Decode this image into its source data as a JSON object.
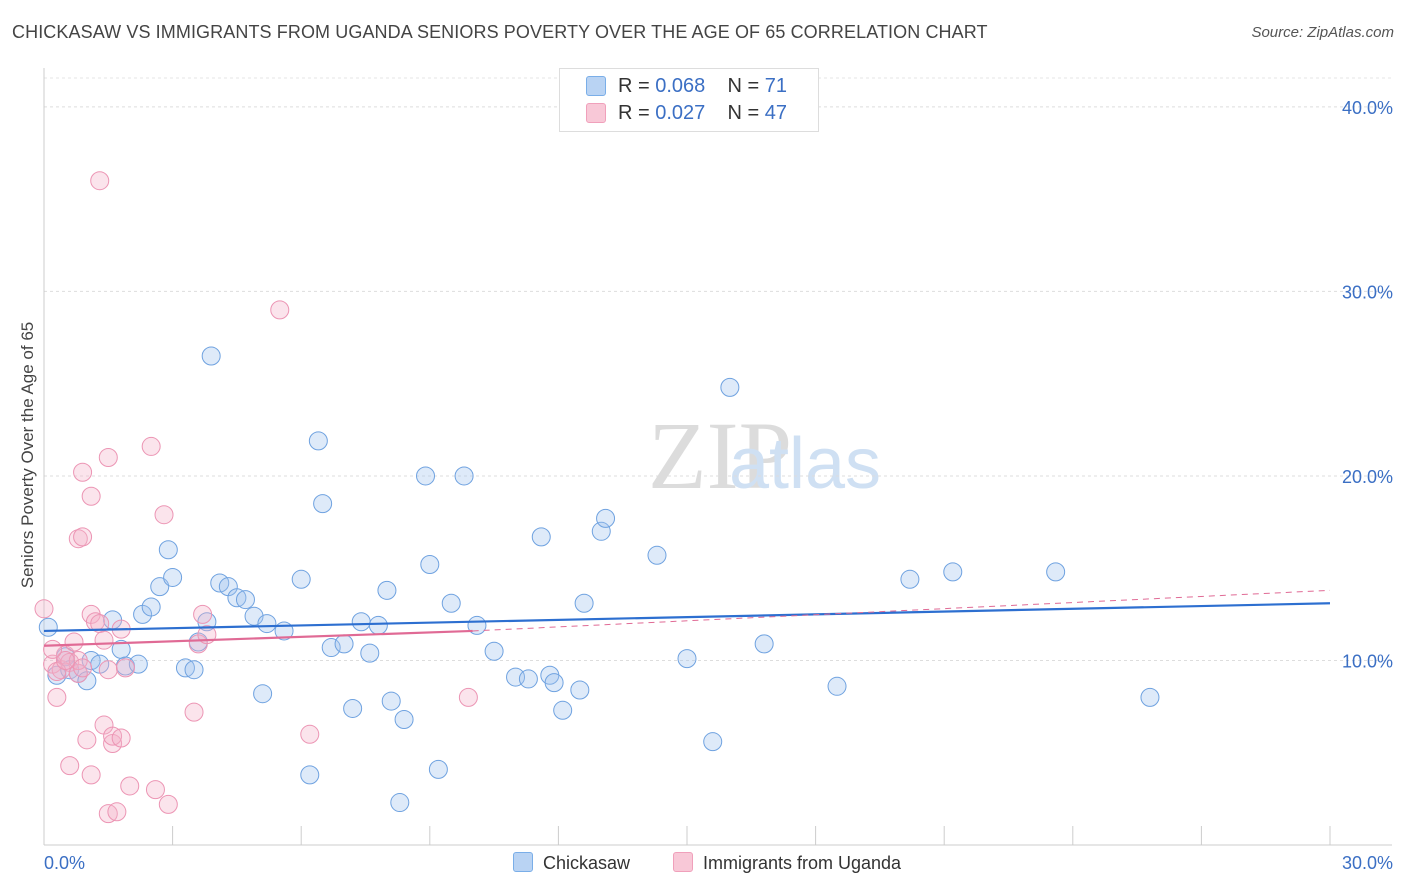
{
  "title": "CHICKASAW VS IMMIGRANTS FROM UGANDA SENIORS POVERTY OVER THE AGE OF 65 CORRELATION CHART",
  "source": "Source: ZipAtlas.com",
  "watermark": {
    "zip": "ZIP",
    "atlas": "atlas"
  },
  "legend": {
    "rows": [
      {
        "r_label": "R =",
        "r_value": "0.068",
        "n_label": "N =",
        "n_value": "71"
      },
      {
        "r_label": "R =",
        "r_value": "0.027",
        "n_label": "N =",
        "n_value": "47"
      }
    ]
  },
  "bottom_legend": {
    "series1": "Chickasaw",
    "series2": "Immigrants from Uganda"
  },
  "colors": {
    "series1": "#7aaee8",
    "series2": "#f0a0bb",
    "line1": "#2d6fd0",
    "line2": "#e06a95",
    "axis_text": "#3b6fc4"
  },
  "chart_data": {
    "type": "scatter",
    "title": "CHICKASAW VS IMMIGRANTS FROM UGANDA SENIORS POVERTY OVER THE AGE OF 65 CORRELATION CHART",
    "xlabel": "",
    "ylabel": "Seniors Poverty Over the Age of 65",
    "xlim": [
      0,
      30
    ],
    "ylim": [
      0,
      42
    ],
    "x_tick_labels": [
      "0.0%",
      "30.0%"
    ],
    "y_ticks": [
      10,
      20,
      30,
      40
    ],
    "y_tick_labels": [
      "10.0%",
      "20.0%",
      "30.0%",
      "40.0%"
    ],
    "grid": true,
    "legend_position": "top-center",
    "series": [
      {
        "name": "Chickasaw",
        "points": [
          [
            0.1,
            11.8
          ],
          [
            0.3,
            9.2
          ],
          [
            0.5,
            10.2
          ],
          [
            0.6,
            9.5
          ],
          [
            0.8,
            9.3
          ],
          [
            1.0,
            8.9
          ],
          [
            1.1,
            10.0
          ],
          [
            1.3,
            9.8
          ],
          [
            1.6,
            12.2
          ],
          [
            1.8,
            10.6
          ],
          [
            1.9,
            9.7
          ],
          [
            2.2,
            9.8
          ],
          [
            2.3,
            12.5
          ],
          [
            2.5,
            12.9
          ],
          [
            2.7,
            14.0
          ],
          [
            2.9,
            16.0
          ],
          [
            3.0,
            14.5
          ],
          [
            3.3,
            9.6
          ],
          [
            3.5,
            9.5
          ],
          [
            3.6,
            11.0
          ],
          [
            3.8,
            12.1
          ],
          [
            3.9,
            26.5
          ],
          [
            4.1,
            14.2
          ],
          [
            4.3,
            14.0
          ],
          [
            4.5,
            13.4
          ],
          [
            4.7,
            13.3
          ],
          [
            4.9,
            12.4
          ],
          [
            5.1,
            8.2
          ],
          [
            5.2,
            12.0
          ],
          [
            5.6,
            11.6
          ],
          [
            6.0,
            14.4
          ],
          [
            6.2,
            3.8
          ],
          [
            6.4,
            21.9
          ],
          [
            6.5,
            18.5
          ],
          [
            6.7,
            10.7
          ],
          [
            7.0,
            10.9
          ],
          [
            7.2,
            7.4
          ],
          [
            7.4,
            12.1
          ],
          [
            7.6,
            10.4
          ],
          [
            7.8,
            11.9
          ],
          [
            8.0,
            13.8
          ],
          [
            8.1,
            7.8
          ],
          [
            8.3,
            2.3
          ],
          [
            8.4,
            6.8
          ],
          [
            8.9,
            20.0
          ],
          [
            9.0,
            15.2
          ],
          [
            9.2,
            4.1
          ],
          [
            9.5,
            13.1
          ],
          [
            9.8,
            20.0
          ],
          [
            10.1,
            11.9
          ],
          [
            10.5,
            10.5
          ],
          [
            11.0,
            9.1
          ],
          [
            11.3,
            9.0
          ],
          [
            11.6,
            16.7
          ],
          [
            11.8,
            9.2
          ],
          [
            11.9,
            8.8
          ],
          [
            12.1,
            7.3
          ],
          [
            12.5,
            8.4
          ],
          [
            12.6,
            13.1
          ],
          [
            13.0,
            17.0
          ],
          [
            13.1,
            17.7
          ],
          [
            14.3,
            15.7
          ],
          [
            15.0,
            10.1
          ],
          [
            15.6,
            5.6
          ],
          [
            16.0,
            24.8
          ],
          [
            16.8,
            10.9
          ],
          [
            18.5,
            8.6
          ],
          [
            20.2,
            14.4
          ],
          [
            21.2,
            14.8
          ],
          [
            23.6,
            14.8
          ],
          [
            25.8,
            8.0
          ]
        ],
        "trend": {
          "x": [
            0,
            30
          ],
          "y": [
            11.6,
            13.1
          ]
        }
      },
      {
        "name": "Immigrants from Uganda",
        "points": [
          [
            0.0,
            12.8
          ],
          [
            0.2,
            9.8
          ],
          [
            0.3,
            8.0
          ],
          [
            0.4,
            9.5
          ],
          [
            0.5,
            10.3
          ],
          [
            0.6,
            9.9
          ],
          [
            0.6,
            4.3
          ],
          [
            0.7,
            11.0
          ],
          [
            0.8,
            9.3
          ],
          [
            0.8,
            10.0
          ],
          [
            0.8,
            16.6
          ],
          [
            0.9,
            9.6
          ],
          [
            0.9,
            16.7
          ],
          [
            0.9,
            20.2
          ],
          [
            1.0,
            5.7
          ],
          [
            1.1,
            12.5
          ],
          [
            1.1,
            3.8
          ],
          [
            1.1,
            18.9
          ],
          [
            1.2,
            12.1
          ],
          [
            1.3,
            12.0
          ],
          [
            1.3,
            36.0
          ],
          [
            1.4,
            11.1
          ],
          [
            1.4,
            6.5
          ],
          [
            1.5,
            9.5
          ],
          [
            1.5,
            1.7
          ],
          [
            1.5,
            21.0
          ],
          [
            1.6,
            5.5
          ],
          [
            1.6,
            5.9
          ],
          [
            1.7,
            1.8
          ],
          [
            1.8,
            11.7
          ],
          [
            1.8,
            5.8
          ],
          [
            2.0,
            3.2
          ],
          [
            2.5,
            21.6
          ],
          [
            2.6,
            3.0
          ],
          [
            2.8,
            17.9
          ],
          [
            2.9,
            2.2
          ],
          [
            3.5,
            7.2
          ],
          [
            3.6,
            10.9
          ],
          [
            3.7,
            12.5
          ],
          [
            3.8,
            11.4
          ],
          [
            5.5,
            29.0
          ],
          [
            6.2,
            6.0
          ],
          [
            9.9,
            8.0
          ],
          [
            0.3,
            9.4
          ],
          [
            0.5,
            10.0
          ],
          [
            0.2,
            10.6
          ],
          [
            1.9,
            9.6
          ]
        ],
        "trend": {
          "x": [
            0,
            10
          ],
          "y": [
            10.8,
            11.6
          ]
        },
        "trend_dashed": {
          "x": [
            10,
            30
          ],
          "y": [
            11.6,
            13.8
          ]
        }
      }
    ]
  }
}
